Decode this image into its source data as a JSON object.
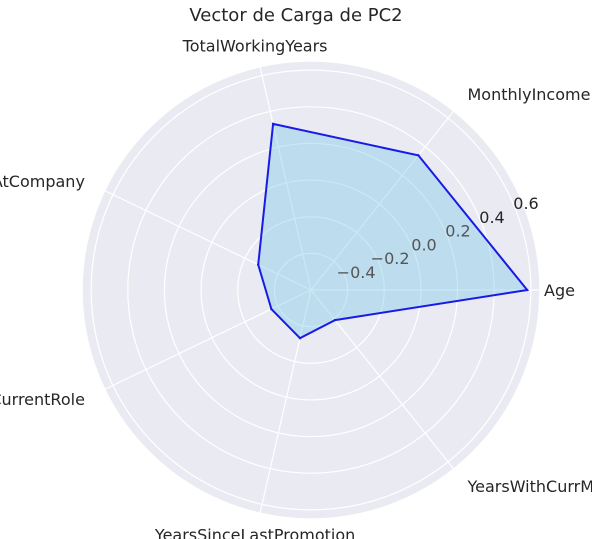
{
  "chart_data": {
    "type": "radar",
    "title": "Vector de Carga de PC2",
    "categories": [
      "Age",
      "MonthlyIncome",
      "TotalWorkingYears",
      "YearsAtCompany",
      "YearsInCurrentRole",
      "YearsSinceLastPromotion",
      "YearsWithCurrManager"
    ],
    "series": [
      {
        "values": [
          0.58,
          0.34,
          0.33,
          -0.28,
          -0.36,
          -0.33,
          -0.39
        ],
        "line_color": "#1a1ae6",
        "fill_color": "#87ceeb"
      }
    ],
    "r_ticks": [
      -0.4,
      -0.2,
      0.0,
      0.2,
      0.4,
      0.6
    ],
    "r_tick_labels": [
      "−0.4",
      "−0.2",
      "0.0",
      "0.2",
      "0.4",
      "0.6"
    ],
    "rlim": [
      -0.6,
      0.65
    ],
    "grid": true,
    "background_color": "#eaeaf2"
  }
}
